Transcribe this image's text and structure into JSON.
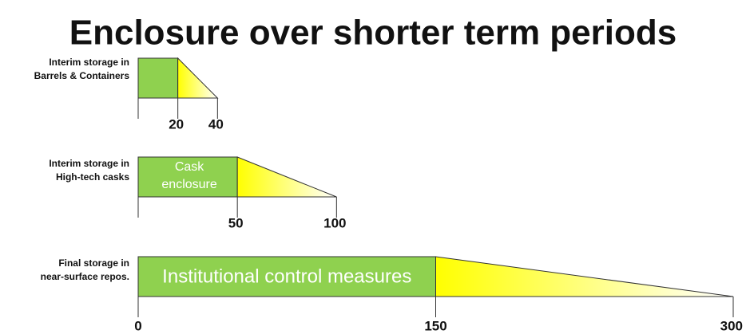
{
  "title": "Enclosure over shorter term periods",
  "xlim": [
    0,
    300
  ],
  "rows": [
    {
      "label": [
        "Interim storage in",
        "Barrels & Containers"
      ],
      "ticks": [
        20,
        40
      ]
    },
    {
      "label": [
        "Interim storage in",
        "High-tech casks"
      ],
      "box_text": [
        "Cask",
        "enclosure"
      ],
      "ticks": [
        50,
        100
      ]
    },
    {
      "label": [
        "Final storage in",
        "near-surface repos."
      ],
      "box_text": [
        "Institutional control measures"
      ],
      "ticks": [
        0,
        150,
        300
      ]
    }
  ]
}
